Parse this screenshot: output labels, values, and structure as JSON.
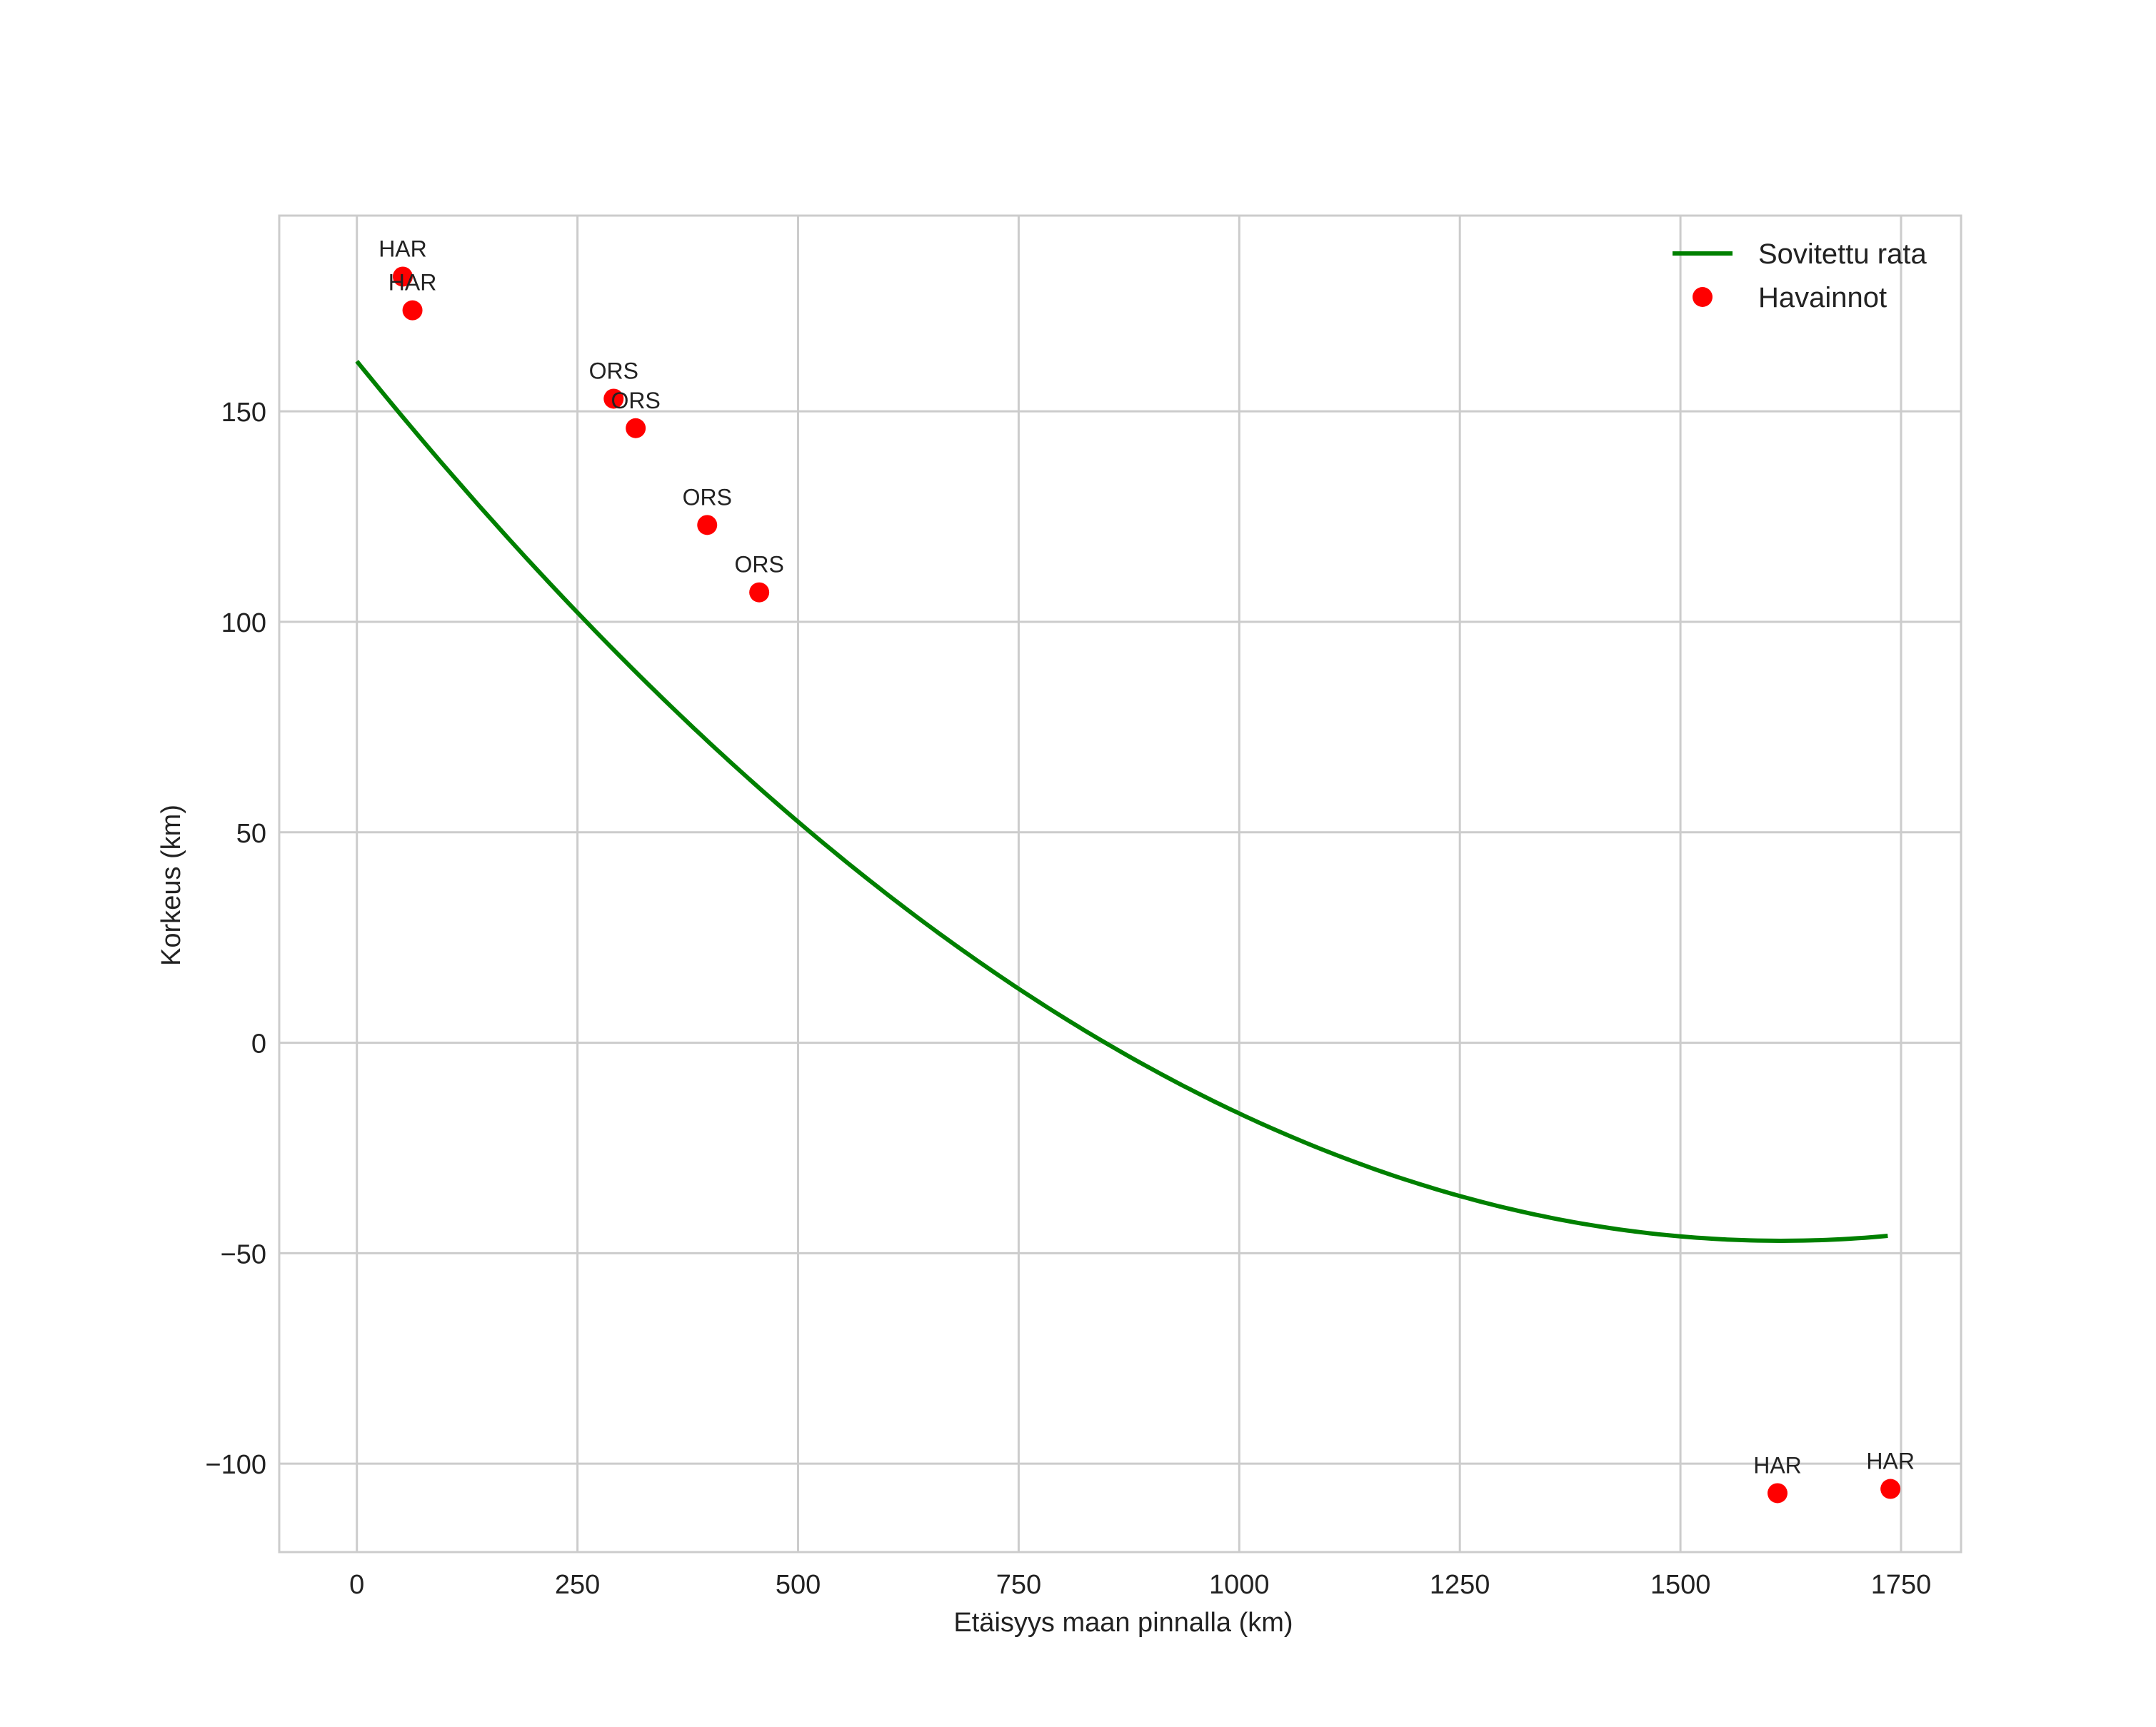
{
  "chart_data": {
    "type": "scatter",
    "title": "",
    "xlabel": "Etäisyys maan pinnalla (km)",
    "ylabel": "Korkeus (km)",
    "xlim": [
      -88,
      1818
    ],
    "ylim": [
      -121,
      196.5
    ],
    "xticks": [
      0,
      250,
      500,
      750,
      1000,
      1250,
      1500,
      1750
    ],
    "xtick_labels": [
      "0",
      "250",
      "500",
      "750",
      "1000",
      "1250",
      "1500",
      "1750"
    ],
    "yticks": [
      -100,
      -50,
      0,
      50,
      100,
      150
    ],
    "ytick_labels": [
      "−100",
      "−50",
      "0",
      "50",
      "100",
      "150"
    ],
    "grid": true,
    "legend_position": "top-right",
    "series": [
      {
        "name": "Sovitettu rata",
        "kind": "line",
        "color": "#008000",
        "model": "quadratic",
        "coefficients": {
          "a": 8.02e-05,
          "b": -0.2589,
          "c": 161.9
        },
        "x_range": [
          0,
          1735
        ]
      },
      {
        "name": "Havainnot",
        "kind": "scatter",
        "color": "#ff0000",
        "points": [
          {
            "x": 52,
            "y": 182,
            "label": "HAR"
          },
          {
            "x": 63,
            "y": 174,
            "label": "HAR"
          },
          {
            "x": 291,
            "y": 153,
            "label": "ORS"
          },
          {
            "x": 316,
            "y": 146,
            "label": "ORS"
          },
          {
            "x": 397,
            "y": 123,
            "label": "ORS"
          },
          {
            "x": 456,
            "y": 107,
            "label": "ORS"
          },
          {
            "x": 1610,
            "y": -107,
            "label": "HAR"
          },
          {
            "x": 1738,
            "y": -106,
            "label": "HAR"
          }
        ]
      }
    ]
  }
}
